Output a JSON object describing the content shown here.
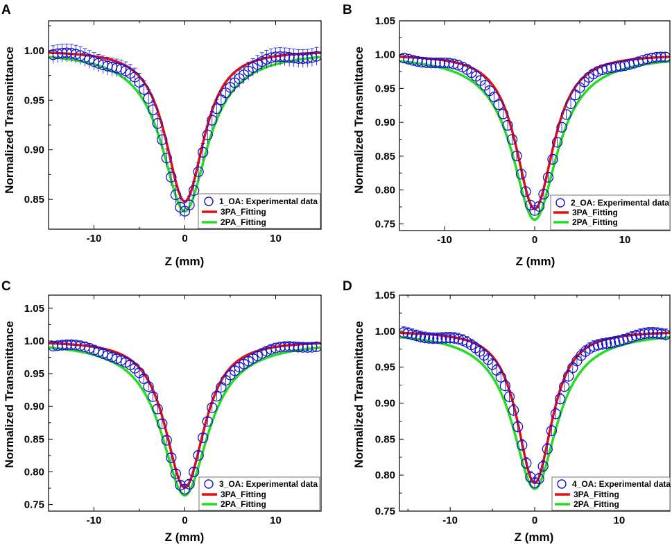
{
  "chart_data": [
    {
      "panel": "A",
      "type": "scatter",
      "xlabel": "Z (mm)",
      "ylabel": "Normalized Transmittance",
      "xlim": [
        -15,
        15
      ],
      "ylim": [
        0.82,
        1.03
      ],
      "xticks": [
        -10,
        0,
        10
      ],
      "yticks": [
        0.85,
        0.9,
        0.95,
        1.0
      ],
      "tick_format": 2,
      "legend_position": "bottom-right",
      "series": [
        {
          "name": "1_OA: Experimental data",
          "kind": "scatter",
          "color": "#1414c8",
          "dip": 0.161,
          "width": 3.0,
          "error": 0.009
        },
        {
          "name": "3PA_Fitting",
          "kind": "line",
          "color": "#e01010",
          "dip": 0.152,
          "width": 2.95,
          "shape": "3PA"
        },
        {
          "name": "2PA_Fitting",
          "kind": "line",
          "color": "#22dd22",
          "dip": 0.162,
          "width": 3.05,
          "shape": "2PA"
        }
      ]
    },
    {
      "panel": "B",
      "type": "scatter",
      "xlabel": "Z (mm)",
      "ylabel": "Normalized Transmittance",
      "xlim": [
        -15,
        15
      ],
      "ylim": [
        0.74,
        1.05
      ],
      "xticks": [
        -10,
        0,
        10
      ],
      "yticks": [
        0.75,
        0.8,
        0.85,
        0.9,
        0.95,
        1.0,
        1.05
      ],
      "tick_format": 2,
      "legend_position": "bottom-right",
      "series": [
        {
          "name": "2_OA: Experimental data",
          "kind": "scatter",
          "color": "#1414c8",
          "dip": 0.232,
          "width": 3.0,
          "error": 0.007
        },
        {
          "name": "3PA_Fitting",
          "kind": "line",
          "color": "#e01010",
          "dip": 0.228,
          "width": 2.95,
          "shape": "3PA"
        },
        {
          "name": "2PA_Fitting",
          "kind": "line",
          "color": "#22dd22",
          "dip": 0.244,
          "width": 3.05,
          "shape": "2PA"
        }
      ]
    },
    {
      "panel": "C",
      "type": "scatter",
      "xlabel": "Z (mm)",
      "ylabel": "Normalized Transmittance",
      "xlim": [
        -15,
        15
      ],
      "ylim": [
        0.74,
        1.07
      ],
      "xticks": [
        -10,
        0,
        10
      ],
      "yticks": [
        0.75,
        0.8,
        0.85,
        0.9,
        0.95,
        1.0,
        1.05
      ],
      "tick_format": 2,
      "legend_position": "bottom-right",
      "series": [
        {
          "name": "3_OA: Experimental data",
          "kind": "scatter",
          "color": "#1414c8",
          "dip": 0.224,
          "width": 3.1,
          "error": 0.006
        },
        {
          "name": "3PA_Fitting",
          "kind": "line",
          "color": "#e01010",
          "dip": 0.224,
          "width": 3.05,
          "shape": "3PA"
        },
        {
          "name": "2PA_Fitting",
          "kind": "line",
          "color": "#22dd22",
          "dip": 0.236,
          "width": 3.15,
          "shape": "2PA"
        }
      ]
    },
    {
      "panel": "D",
      "type": "scatter",
      "xlabel": "Z (mm)",
      "ylabel": "Normalized Transmittance",
      "xlim": [
        -16,
        16
      ],
      "ylim": [
        0.75,
        1.05
      ],
      "xticks": [
        -10,
        0,
        10
      ],
      "yticks": [
        0.75,
        0.8,
        0.85,
        0.9,
        0.95,
        1.0,
        1.05
      ],
      "tick_format": 2,
      "legend_position": "bottom-right",
      "series": [
        {
          "name": "4_OA: Experimental data",
          "kind": "scatter",
          "color": "#1414c8",
          "dip": 0.212,
          "width": 2.9,
          "error": 0.008
        },
        {
          "name": "3PA_Fitting",
          "kind": "line",
          "color": "#e01010",
          "dip": 0.211,
          "width": 2.9,
          "shape": "3PA"
        },
        {
          "name": "2PA_Fitting",
          "kind": "line",
          "color": "#22dd22",
          "dip": 0.219,
          "width": 3.2,
          "shape": "2PA"
        }
      ]
    }
  ]
}
